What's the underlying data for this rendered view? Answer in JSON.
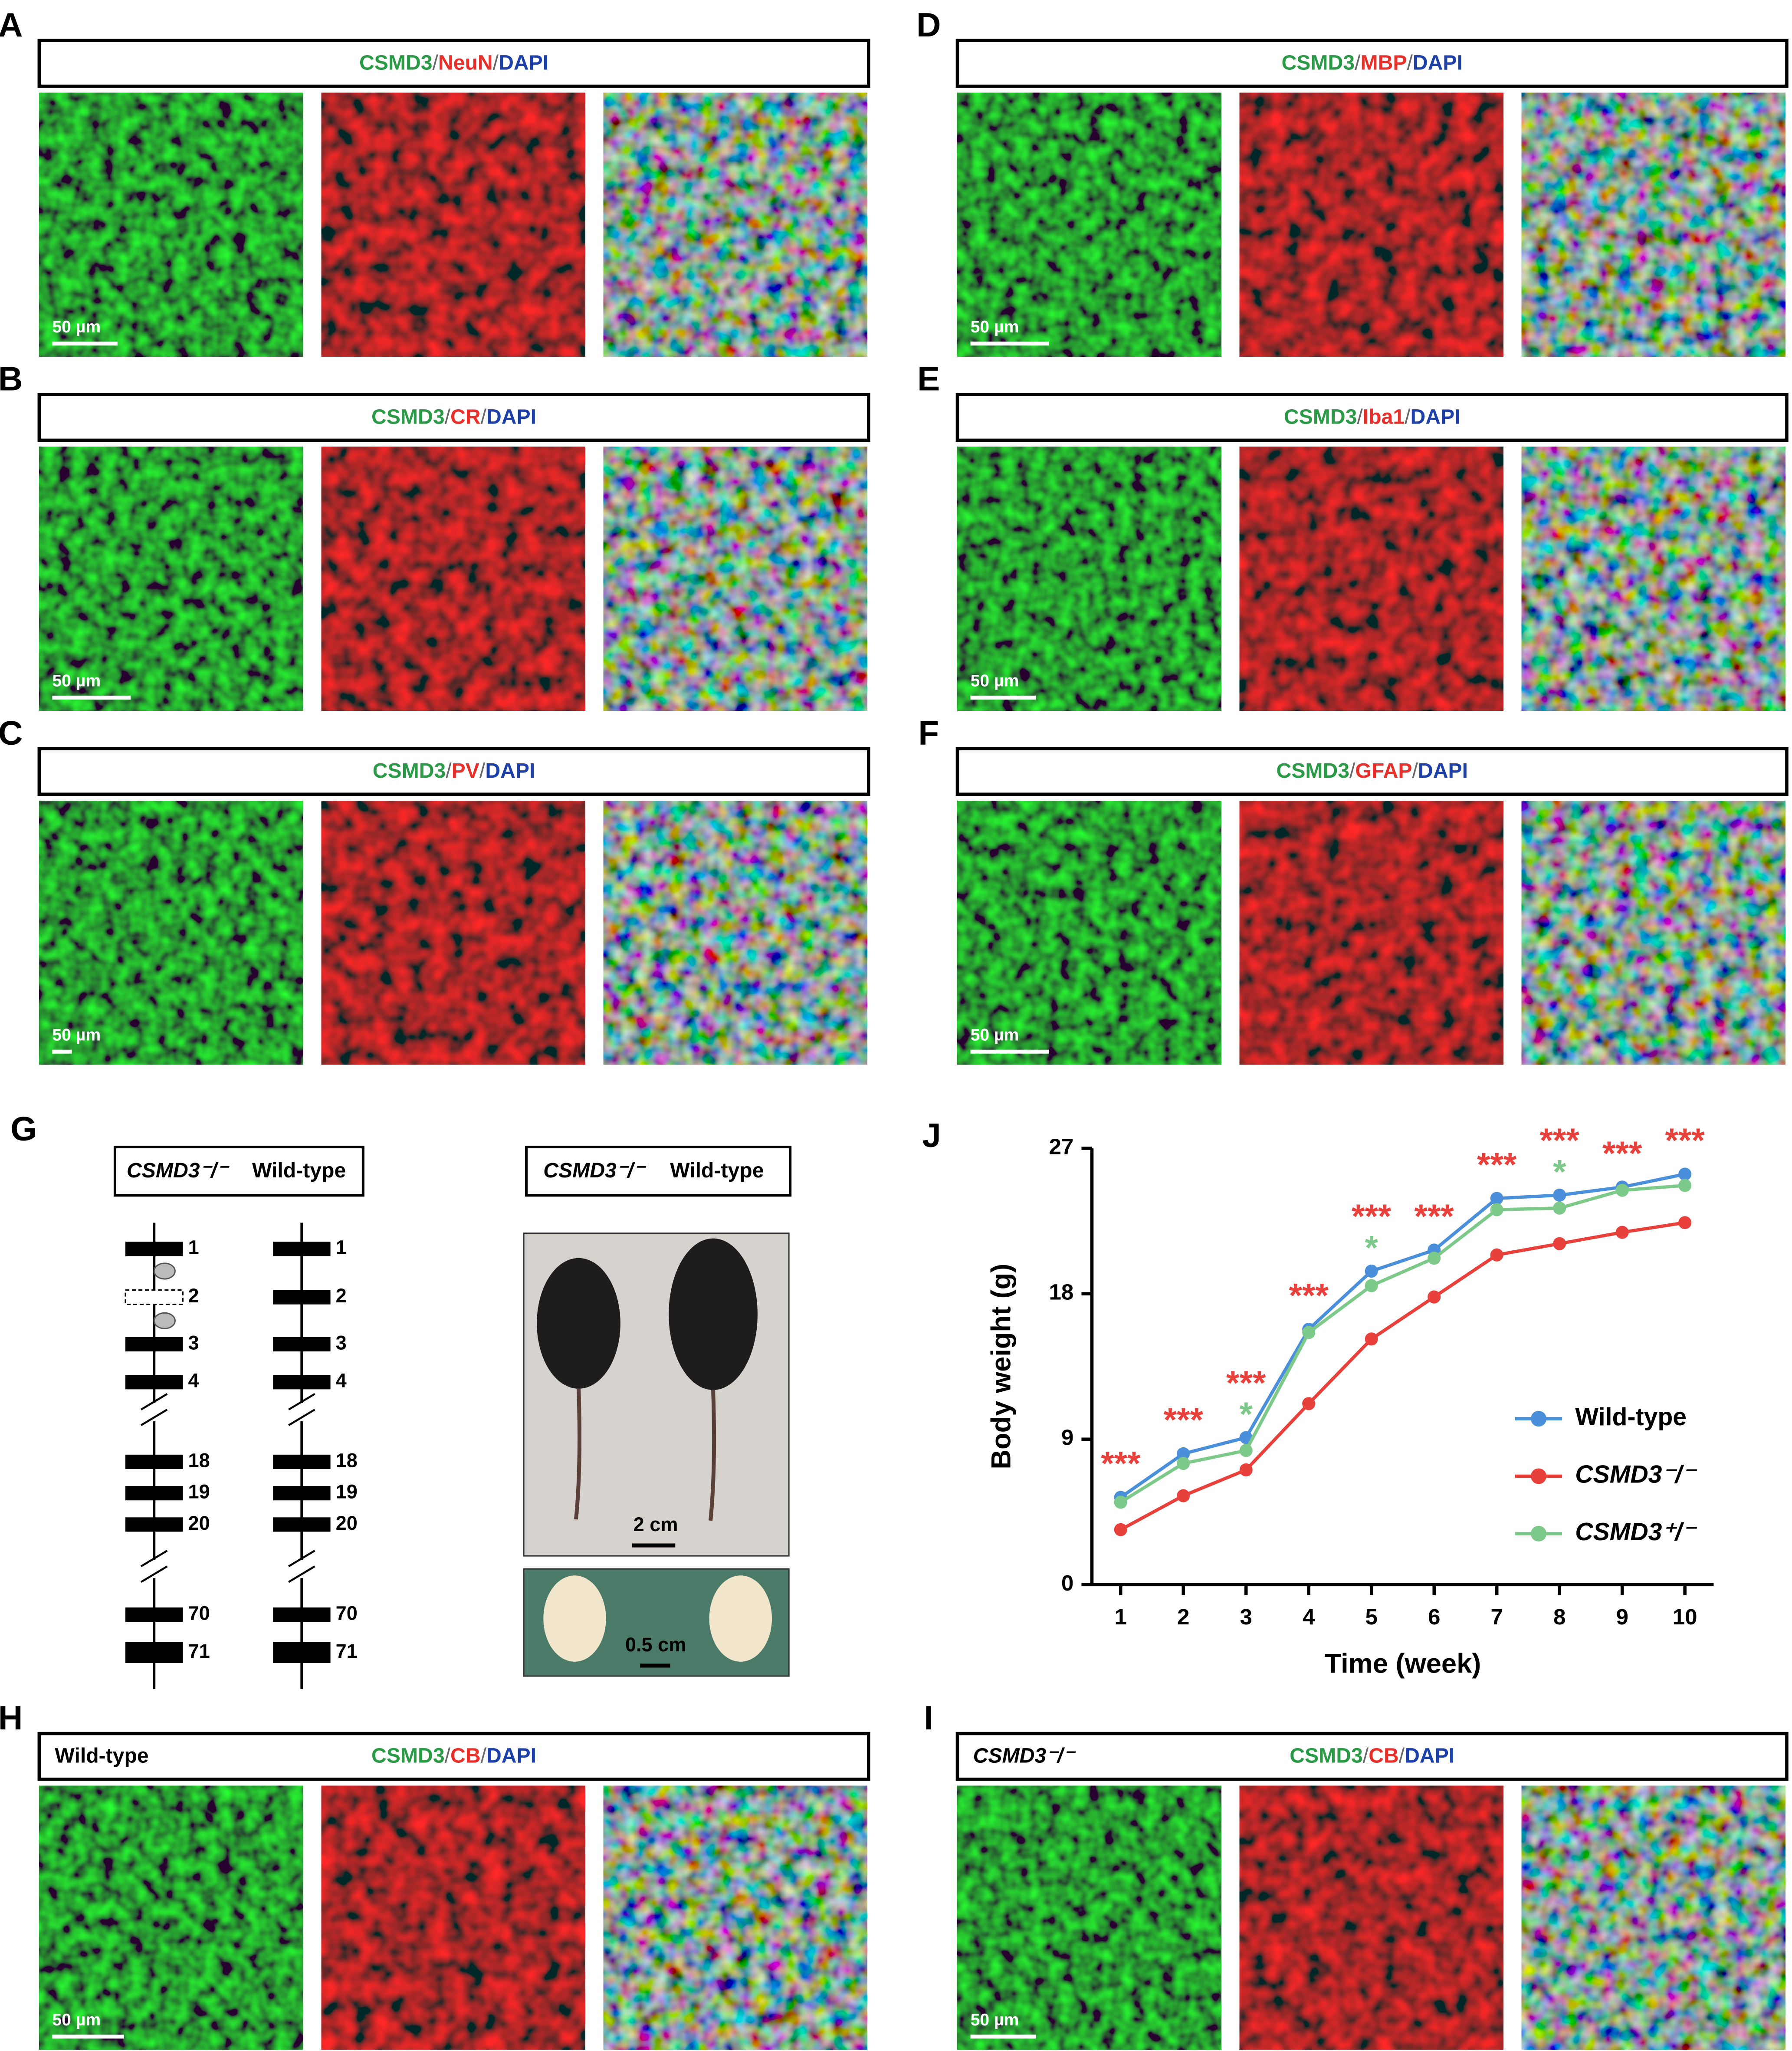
{
  "image_panels": [
    {
      "label": "A",
      "markers": [
        "CSMD3",
        "NeuN",
        "DAPI"
      ],
      "separator": "/",
      "scale_bar": "50 µm"
    },
    {
      "label": "B",
      "markers": [
        "CSMD3",
        "CR",
        "DAPI"
      ],
      "separator": "/",
      "scale_bar": "50 µm"
    },
    {
      "label": "C",
      "markers": [
        "CSMD3",
        "PV",
        "DAPI"
      ],
      "separator": "/",
      "scale_bar": "50 µm"
    },
    {
      "label": "D",
      "markers": [
        "CSMD3",
        "MBP",
        "DAPI"
      ],
      "separator": "/",
      "scale_bar": "50 µm"
    },
    {
      "label": "E",
      "markers": [
        "CSMD3",
        "Iba1",
        "DAPI"
      ],
      "separator": "/",
      "scale_bar": "50 µm"
    },
    {
      "label": "F",
      "markers": [
        "CSMD3",
        "GFAP",
        "DAPI"
      ],
      "separator": "/",
      "scale_bar": "50 µm"
    },
    {
      "label": "H",
      "genotype": "Wild-type",
      "markers": [
        "CSMD3",
        "CB",
        "DAPI"
      ],
      "separator": "/",
      "scale_bar": "50 µm"
    },
    {
      "label": "I",
      "genotype": "CSMD3⁻/⁻",
      "markers": [
        "CSMD3",
        "CB",
        "DAPI"
      ],
      "separator": "/",
      "scale_bar": "50 µm"
    }
  ],
  "panel_g": {
    "label": "G",
    "genotypes": [
      "CSMD3⁻/⁻",
      "Wild-type"
    ],
    "exons": [
      "1",
      "2",
      "3",
      "4",
      "18",
      "19",
      "20",
      "70",
      "71"
    ],
    "photo_genotypes": [
      "CSMD3⁻/⁻",
      "Wild-type"
    ],
    "mouse_scale_bar": "2 cm",
    "brain_scale_bar": "0.5 cm"
  },
  "chart_data": {
    "type": "line",
    "panel_label": "J",
    "x_label": "Time (week)",
    "y_label": "Body weight (g)",
    "categories": [
      "1",
      "2",
      "3",
      "4",
      "5",
      "6",
      "7",
      "8",
      "9",
      "10"
    ],
    "ylim": [
      0,
      27
    ],
    "yticks": [
      0,
      9,
      18,
      27
    ],
    "series": [
      {
        "name": "Wild-type",
        "color": "#4a8fd9",
        "values": [
          5.4,
          8.1,
          9.1,
          15.8,
          19.4,
          20.7,
          23.9,
          24.1,
          24.6,
          25.4
        ]
      },
      {
        "name": "CSMD3⁻/⁻",
        "color": "#e8413c",
        "values": [
          3.4,
          5.5,
          7.1,
          11.2,
          15.2,
          17.8,
          20.4,
          21.1,
          21.8,
          22.4
        ]
      },
      {
        "name": "CSMD3⁺/⁻",
        "color": "#7cc98a",
        "values": [
          5.1,
          7.5,
          8.3,
          15.6,
          18.5,
          20.2,
          23.2,
          23.3,
          24.4,
          24.7
        ]
      }
    ],
    "significance": [
      {
        "x": "1",
        "label": "***",
        "color": "#e8413c"
      },
      {
        "x": "2",
        "label": "***",
        "color": "#e8413c"
      },
      {
        "x": "3",
        "label": "***",
        "color": "#e8413c"
      },
      {
        "x": "3",
        "label": "*",
        "color": "#7cc98a"
      },
      {
        "x": "4",
        "label": "***",
        "color": "#e8413c"
      },
      {
        "x": "5",
        "label": "***",
        "color": "#e8413c"
      },
      {
        "x": "5",
        "label": "*",
        "color": "#7cc98a"
      },
      {
        "x": "6",
        "label": "***",
        "color": "#e8413c"
      },
      {
        "x": "7",
        "label": "***",
        "color": "#e8413c"
      },
      {
        "x": "8",
        "label": "***",
        "color": "#e8413c"
      },
      {
        "x": "8",
        "label": "*",
        "color": "#7cc98a"
      },
      {
        "x": "9",
        "label": "***",
        "color": "#e8413c"
      },
      {
        "x": "10",
        "label": "***",
        "color": "#e8413c"
      }
    ]
  }
}
